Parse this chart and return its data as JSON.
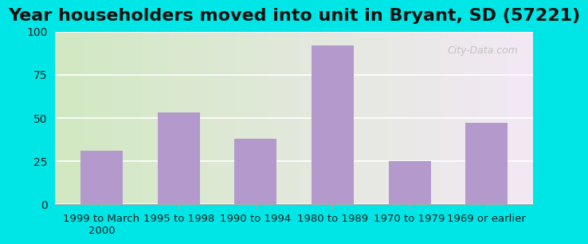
{
  "title": "Year householders moved into unit in Bryant, SD (57221)",
  "categories": [
    "1999 to March\n2000",
    "1995 to 1998",
    "1990 to 1994",
    "1980 to 1989",
    "1970 to 1979",
    "1969 or earlier"
  ],
  "values": [
    31,
    53,
    38,
    92,
    25,
    47
  ],
  "bar_color": "#b399cc",
  "background_outer": "#00e5e5",
  "ylim": [
    0,
    100
  ],
  "yticks": [
    0,
    25,
    50,
    75,
    100
  ],
  "grid_color": "#ffffff",
  "title_fontsize": 16,
  "tick_fontsize": 9.5,
  "watermark": "City-Data.com"
}
